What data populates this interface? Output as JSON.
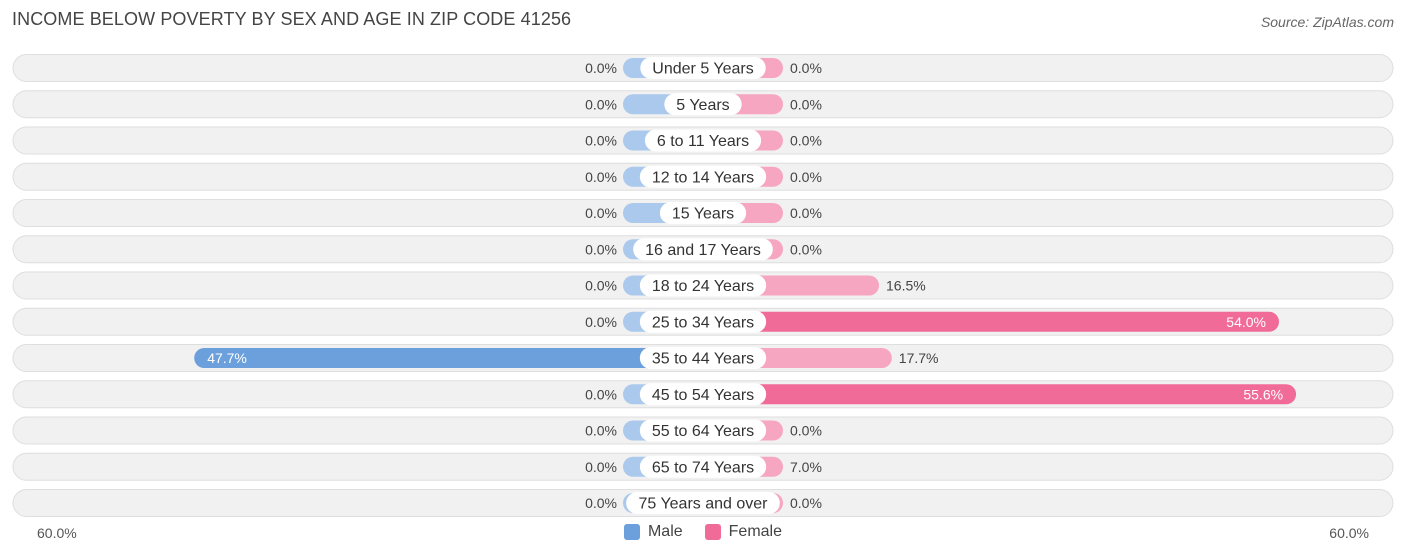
{
  "header": {
    "title": "INCOME BELOW POVERTY BY SEX AND AGE IN ZIP CODE 41256",
    "source": "Source: ZipAtlas.com"
  },
  "axis": {
    "left_label": "60.0%",
    "right_label": "60.0%"
  },
  "legend": {
    "male_label": "Male",
    "female_label": "Female"
  },
  "colors": {
    "male_dark": "#6ba0dc",
    "male_light": "#aac9ec",
    "female_dark": "#f06b97",
    "female_light": "#f6a6c0",
    "row_bg": "#f1f1f1",
    "row_border": "#dedede"
  },
  "chart_data": {
    "type": "bar",
    "orientation": "horizontal-diverging",
    "title": "INCOME BELOW POVERTY BY SEX AND AGE IN ZIP CODE 41256",
    "xlim": [
      -60,
      60
    ],
    "categories": [
      "Under 5 Years",
      "5 Years",
      "6 to 11 Years",
      "12 to 14 Years",
      "15 Years",
      "16 and 17 Years",
      "18 to 24 Years",
      "25 to 34 Years",
      "35 to 44 Years",
      "45 to 54 Years",
      "55 to 64 Years",
      "65 to 74 Years",
      "75 Years and over"
    ],
    "series": [
      {
        "name": "Male",
        "values": [
          0.0,
          0.0,
          0.0,
          0.0,
          0.0,
          0.0,
          0.0,
          0.0,
          47.7,
          0.0,
          0.0,
          0.0,
          0.0
        ],
        "labels": [
          "0.0%",
          "0.0%",
          "0.0%",
          "0.0%",
          "0.0%",
          "0.0%",
          "0.0%",
          "0.0%",
          "47.7%",
          "0.0%",
          "0.0%",
          "0.0%",
          "0.0%"
        ]
      },
      {
        "name": "Female",
        "values": [
          0.0,
          0.0,
          0.0,
          0.0,
          0.0,
          0.0,
          16.5,
          54.0,
          17.7,
          55.6,
          0.0,
          7.0,
          0.0
        ],
        "labels": [
          "0.0%",
          "0.0%",
          "0.0%",
          "0.0%",
          "0.0%",
          "0.0%",
          "16.5%",
          "54.0%",
          "17.7%",
          "55.6%",
          "0.0%",
          "7.0%",
          "0.0%"
        ]
      }
    ],
    "legend_position": "bottom-center",
    "grid": false
  }
}
